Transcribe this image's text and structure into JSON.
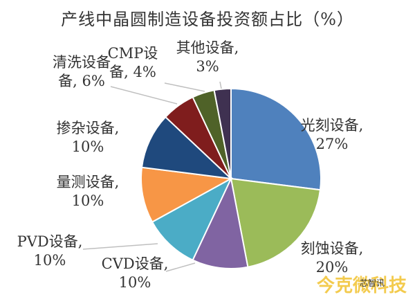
{
  "chart_data": {
    "type": "pie",
    "title": "产线中晶圆制造设备投资额占比（%）",
    "slices": [
      {
        "category": "光刻设备",
        "value": 27,
        "label_line1": "光刻设备,",
        "label_line2": "27%",
        "color": "#4f81bd"
      },
      {
        "category": "刻蚀设备",
        "value": 20,
        "label_line1": "刻蚀设备,",
        "label_line2": "20%",
        "color": "#9bbb59"
      },
      {
        "category": "CVD设备",
        "value": 10,
        "label_line1": "CVD设备,",
        "label_line2": "10%",
        "color": "#8064a2"
      },
      {
        "category": "PVD设备",
        "value": 10,
        "label_line1": "PVD设备,",
        "label_line2": "10%",
        "color": "#4bacc6"
      },
      {
        "category": "量测设备",
        "value": 10,
        "label_line1": "量测设备,",
        "label_line2": "10%",
        "color": "#f79646"
      },
      {
        "category": "掺杂设备",
        "value": 10,
        "label_line1": "掺杂设备,",
        "label_line2": "10%",
        "color": "#1f497d"
      },
      {
        "category": "清洗设备",
        "value": 6,
        "label_line1": "清洗设备",
        "label_line2": "备, 6%",
        "color": "#7f1d1d"
      },
      {
        "category": "CMP设备",
        "value": 4,
        "label_line1": "CMP设",
        "label_line2": "备, 4%",
        "color": "#4f6228"
      },
      {
        "category": "其他设备",
        "value": 3,
        "label_line1": "其他设备,",
        "label_line2": "3%",
        "color": "#3f3151"
      }
    ]
  },
  "watermark": {
    "brand": "今克微科技",
    "sub": "芯智讯"
  }
}
